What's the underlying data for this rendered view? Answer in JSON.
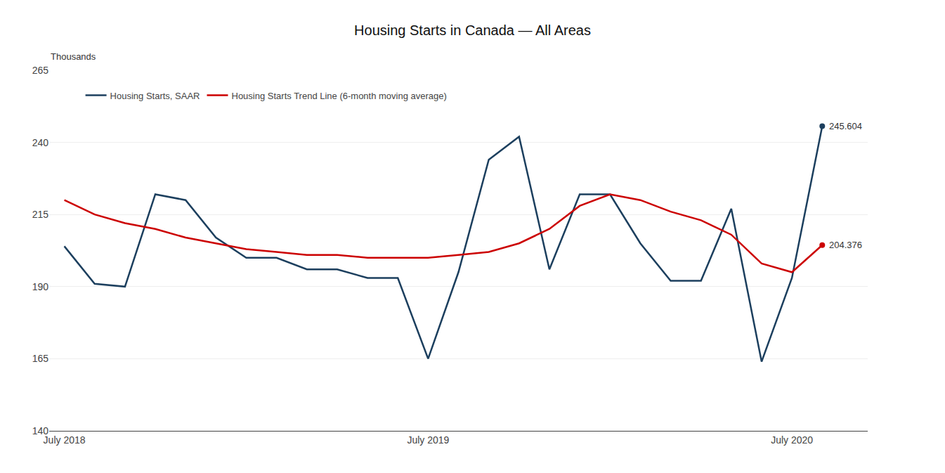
{
  "chart_data": {
    "type": "line",
    "title": "Housing Starts in Canada — All Areas",
    "ylabel": "Thousands",
    "categories": [
      "July 2018",
      null,
      null,
      null,
      null,
      null,
      null,
      null,
      null,
      null,
      null,
      null,
      "July 2019",
      null,
      null,
      null,
      null,
      null,
      null,
      null,
      null,
      null,
      null,
      null,
      "July 2020",
      null
    ],
    "series": [
      {
        "name": "Housing Starts, SAAR",
        "color": "#1c3f5e",
        "values": [
          204,
          191,
          190,
          222,
          220,
          207,
          200,
          200,
          196,
          196,
          193,
          193,
          165,
          195,
          234,
          242,
          196,
          222,
          222,
          205,
          192,
          192,
          217,
          164,
          193,
          245.604
        ]
      },
      {
        "name": "Housing Starts Trend Line (6-month moving average)",
        "color": "#cc0000",
        "values": [
          220,
          215,
          212,
          210,
          207,
          205,
          203,
          202,
          201,
          201,
          200,
          200,
          200,
          201,
          202,
          205,
          210,
          218,
          222,
          220,
          216,
          213,
          208,
          198,
          195,
          204.376
        ]
      }
    ],
    "ylim": [
      140,
      265
    ],
    "yticks": [
      140,
      165,
      190,
      215,
      240,
      265
    ],
    "grid": true,
    "legend": "upper left",
    "annotations": [
      {
        "text": "245.604",
        "y": 245.604
      },
      {
        "text": "204.376",
        "y": 204.376
      }
    ]
  }
}
